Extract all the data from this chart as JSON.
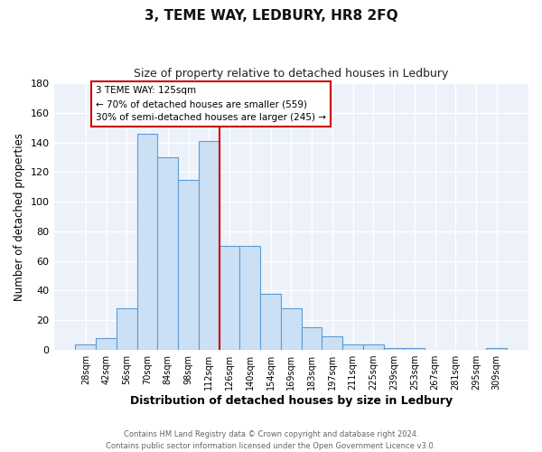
{
  "title": "3, TEME WAY, LEDBURY, HR8 2FQ",
  "subtitle": "Size of property relative to detached houses in Ledbury",
  "xlabel": "Distribution of detached houses by size in Ledbury",
  "ylabel": "Number of detached properties",
  "bar_labels": [
    "28sqm",
    "42sqm",
    "56sqm",
    "70sqm",
    "84sqm",
    "98sqm",
    "112sqm",
    "126sqm",
    "140sqm",
    "154sqm",
    "169sqm",
    "183sqm",
    "197sqm",
    "211sqm",
    "225sqm",
    "239sqm",
    "253sqm",
    "267sqm",
    "281sqm",
    "295sqm",
    "309sqm"
  ],
  "bar_values": [
    4,
    8,
    28,
    146,
    130,
    115,
    141,
    70,
    70,
    38,
    28,
    15,
    9,
    4,
    4,
    1,
    1,
    0,
    0,
    0,
    1
  ],
  "bar_color": "#cce0f5",
  "bar_edge_color": "#5b9bd5",
  "vline_pos": 6.5,
  "vline_color": "#cc0000",
  "annotation_title": "3 TEME WAY: 125sqm",
  "annotation_line1": "← 70% of detached houses are smaller (559)",
  "annotation_line2": "30% of semi-detached houses are larger (245) →",
  "annotation_box_color": "#ffffff",
  "annotation_box_edge": "#cc0000",
  "ylim": [
    0,
    180
  ],
  "yticks": [
    0,
    20,
    40,
    60,
    80,
    100,
    120,
    140,
    160,
    180
  ],
  "footer1": "Contains HM Land Registry data © Crown copyright and database right 2024.",
  "footer2": "Contains public sector information licensed under the Open Government Licence v3.0.",
  "bg_color": "#f0f4fa",
  "plot_bg_color": "#edf2fa"
}
